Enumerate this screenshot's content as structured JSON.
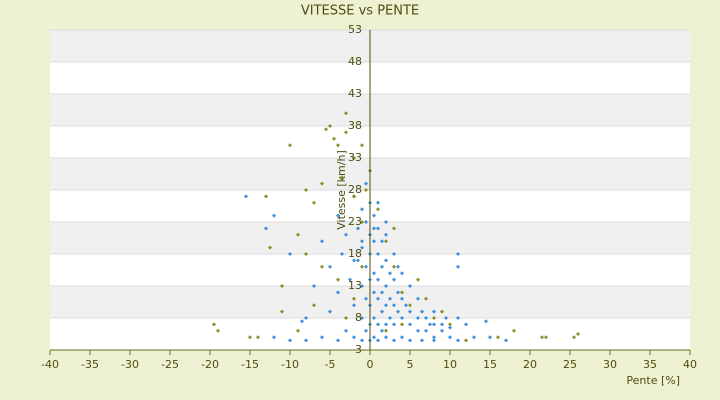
{
  "chart_data": {
    "type": "scatter",
    "title": "VITESSE vs PENTE",
    "x_label": "Pente [%]",
    "y_label": "Vitesse [km/h]",
    "xlim": [
      -40,
      40
    ],
    "xticks": [
      -40,
      -35,
      -30,
      -25,
      -20,
      -15,
      -10,
      -5,
      0,
      5,
      10,
      15,
      20,
      25,
      30,
      35,
      40
    ],
    "ylim": [
      3,
      53
    ],
    "yticks": [
      3,
      8,
      13,
      18,
      23,
      28,
      33,
      38,
      43,
      48,
      53
    ],
    "grid": true,
    "series": [
      {
        "color": "#3a8edb",
        "x": [
          -15.5,
          -13,
          -12,
          -10,
          -8,
          -8.5,
          -7,
          -6,
          -5,
          -5,
          -4,
          -4,
          -3.5,
          -3,
          -3,
          -2.5,
          -2,
          -2,
          -2,
          -1.5,
          -1.5,
          -1,
          -1,
          -1,
          -1,
          -1,
          -0.5,
          -0.5,
          -0.5,
          -0.5,
          -0.5,
          0,
          0,
          0,
          0,
          0,
          0,
          0,
          0.5,
          0.5,
          0.5,
          0.5,
          0.5,
          0.5,
          1,
          1,
          1,
          1,
          1,
          1,
          1.5,
          1.5,
          1.5,
          1.5,
          1.5,
          2,
          2,
          2,
          2,
          2,
          2,
          2.5,
          2.5,
          2.5,
          3,
          3,
          3,
          3,
          3,
          3.5,
          3.5,
          4,
          4,
          4,
          4,
          4.5,
          5,
          5,
          5,
          5,
          6,
          6,
          6,
          6.5,
          7,
          7,
          7.5,
          8,
          8,
          8,
          9,
          9,
          9.5,
          10,
          10,
          11,
          11,
          11,
          12,
          13,
          14.5,
          15,
          17,
          -10,
          -8,
          -6,
          -4,
          -12,
          6.5,
          8,
          11,
          -2,
          1,
          -1,
          2,
          0.5,
          3.5
        ],
        "y": [
          27,
          22,
          24,
          18,
          8,
          7.5,
          13,
          20,
          16,
          9,
          24,
          12,
          18,
          6,
          21,
          14,
          27,
          10,
          5,
          22,
          17,
          25,
          19,
          13,
          8,
          4.5,
          29,
          23,
          16,
          11,
          6,
          26,
          21,
          18,
          14,
          10,
          7,
          4.5,
          24,
          20,
          15,
          12,
          8,
          5,
          22,
          18,
          14,
          11,
          7,
          4.5,
          20,
          16,
          12,
          9,
          6,
          21,
          17,
          13,
          10,
          7,
          5,
          15,
          11,
          8,
          18,
          14,
          10,
          7,
          4.5,
          12,
          9,
          15,
          11,
          8,
          5,
          10,
          13,
          9,
          7,
          4.5,
          11,
          8,
          6,
          9,
          8,
          6,
          7,
          9,
          7,
          5,
          7,
          6,
          8,
          6.5,
          5,
          18,
          16,
          8,
          7,
          5,
          7.5,
          5,
          4.5,
          4.5,
          4.5,
          5,
          4.5,
          5,
          4.5,
          4.5,
          4.5,
          17,
          26,
          20,
          23,
          22,
          16
        ]
      },
      {
        "color": "#8c8c26",
        "x": [
          -19.5,
          -19,
          -15,
          -13,
          -12.5,
          -11,
          -10,
          -9,
          -8,
          -7,
          -6,
          -5.5,
          -5,
          -4.5,
          -4,
          -3,
          -3,
          -3.5,
          -2,
          -2,
          -1,
          -1,
          0,
          -0.5,
          1,
          2,
          3,
          4,
          5,
          6,
          7,
          8,
          9,
          10,
          12,
          16,
          18,
          21.5,
          22,
          25.5,
          26,
          -6,
          -7,
          -9,
          -11,
          -14,
          -3,
          -4,
          -2,
          2,
          4,
          3,
          -8,
          -1
        ],
        "y": [
          7,
          6,
          5,
          27,
          19,
          13,
          35,
          21,
          28,
          26,
          29,
          37.5,
          38,
          36,
          35,
          40,
          37,
          30,
          33,
          27,
          35,
          23,
          31,
          28,
          25,
          20,
          16,
          12,
          10,
          14,
          11,
          8,
          9,
          7,
          4.5,
          5,
          6,
          5,
          5,
          5,
          5.5,
          16,
          10,
          6,
          9,
          5,
          8,
          14,
          11,
          6,
          7,
          22,
          18,
          16
        ]
      }
    ]
  }
}
